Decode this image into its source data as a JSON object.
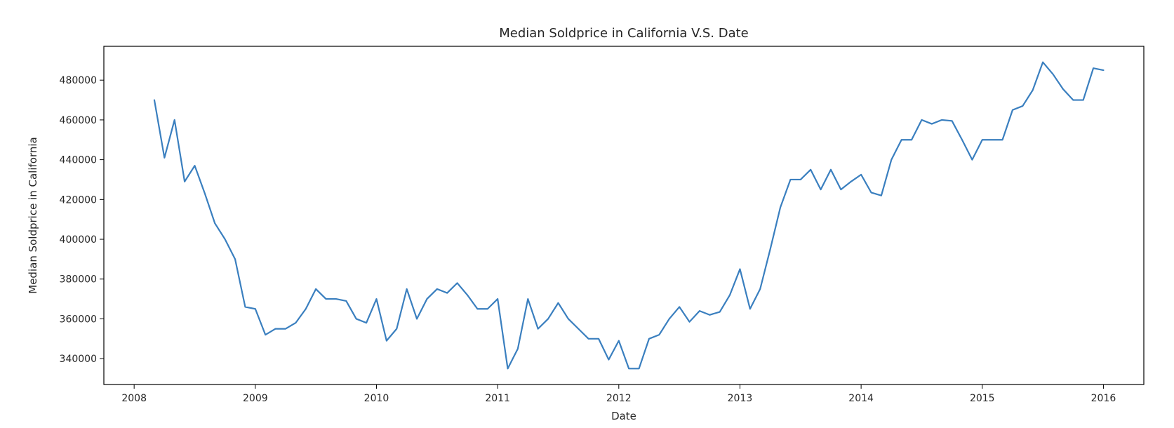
{
  "chart_data": {
    "type": "line",
    "title": "Median Soldprice in California V.S. Date",
    "xlabel": "Date",
    "ylabel": "Median Soldprice in California",
    "x_ticks": [
      "2008",
      "2009",
      "2010",
      "2011",
      "2012",
      "2013",
      "2014",
      "2015",
      "2016"
    ],
    "y_ticks": [
      "340000",
      "360000",
      "380000",
      "400000",
      "420000",
      "440000",
      "460000",
      "480000"
    ],
    "xlim": [
      "2007-10",
      "2016-05"
    ],
    "ylim": [
      327000,
      497000
    ],
    "grid": false,
    "line_color": "#3a7fbf",
    "series": [
      {
        "name": "",
        "x": [
          "2008-03",
          "2008-04",
          "2008-05",
          "2008-06",
          "2008-07",
          "2008-08",
          "2008-09",
          "2008-10",
          "2008-11",
          "2008-12",
          "2009-01",
          "2009-02",
          "2009-03",
          "2009-04",
          "2009-05",
          "2009-06",
          "2009-07",
          "2009-08",
          "2009-09",
          "2009-10",
          "2009-11",
          "2009-12",
          "2010-01",
          "2010-02",
          "2010-03",
          "2010-04",
          "2010-05",
          "2010-06",
          "2010-07",
          "2010-08",
          "2010-09",
          "2010-10",
          "2010-11",
          "2010-12",
          "2011-01",
          "2011-02",
          "2011-03",
          "2011-04",
          "2011-05",
          "2011-06",
          "2011-07",
          "2011-08",
          "2011-09",
          "2011-10",
          "2011-11",
          "2011-12",
          "2012-01",
          "2012-02",
          "2012-03",
          "2012-04",
          "2012-05",
          "2012-06",
          "2012-07",
          "2012-08",
          "2012-09",
          "2012-10",
          "2012-11",
          "2012-12",
          "2013-01",
          "2013-02",
          "2013-03",
          "2013-04",
          "2013-05",
          "2013-06",
          "2013-07",
          "2013-08",
          "2013-09",
          "2013-10",
          "2013-11",
          "2013-12",
          "2014-01",
          "2014-02",
          "2014-03",
          "2014-04",
          "2014-05",
          "2014-06",
          "2014-07",
          "2014-08",
          "2014-09",
          "2014-10",
          "2014-11",
          "2014-12",
          "2015-01",
          "2015-02",
          "2015-03",
          "2015-04",
          "2015-05",
          "2015-06",
          "2015-07",
          "2015-08",
          "2015-09",
          "2015-10",
          "2015-11",
          "2015-12",
          "2016-01"
        ],
        "values": [
          470000,
          441000,
          460000,
          429000,
          437000,
          423000,
          408000,
          400000,
          390000,
          366000,
          365000,
          352000,
          355000,
          355000,
          358000,
          365000,
          375000,
          370000,
          370000,
          369000,
          360000,
          358000,
          370000,
          349000,
          355000,
          375000,
          360000,
          370000,
          375000,
          373000,
          378000,
          372000,
          365000,
          365000,
          370000,
          335000,
          345000,
          370000,
          355000,
          360000,
          368000,
          360000,
          355000,
          350000,
          350000,
          339500,
          349000,
          335000,
          335000,
          350000,
          352000,
          360000,
          366000,
          358500,
          364000,
          362000,
          363500,
          372000,
          385000,
          365000,
          375000,
          395000,
          416000,
          430000,
          430000,
          435000,
          425000,
          435000,
          425000,
          429000,
          432500,
          423500,
          422000,
          440000,
          450000,
          450000,
          460000,
          458000,
          460000,
          459500,
          450000,
          440000,
          450000,
          450000,
          450000,
          465000,
          467000,
          475000,
          489000,
          483000,
          475500,
          470000,
          470000,
          486000,
          485000
        ]
      }
    ]
  }
}
